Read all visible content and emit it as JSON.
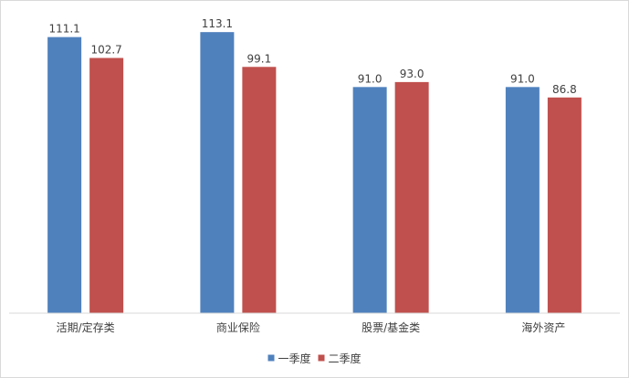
{
  "chart_data": {
    "type": "bar",
    "title": "",
    "xlabel": "",
    "ylabel": "",
    "categories": [
      "活期/定存类",
      "商业保险",
      "股票/基金类",
      "海外资产"
    ],
    "series": [
      {
        "name": "一季度",
        "values": [
          111.1,
          113.1,
          91.0,
          91.0
        ],
        "labels": [
          "111.1",
          "113.1",
          "91.0",
          "91.0"
        ],
        "color": "#4f81bd"
      },
      {
        "name": "二季度",
        "values": [
          102.7,
          99.1,
          93.0,
          86.8
        ],
        "labels": [
          "102.7",
          "99.1",
          "93.0",
          "86.8"
        ],
        "color": "#c0504d"
      }
    ],
    "ylim": [
      0,
      115
    ],
    "grid": false,
    "legend_position": "bottom",
    "axis_color": "#d9d9d9"
  }
}
